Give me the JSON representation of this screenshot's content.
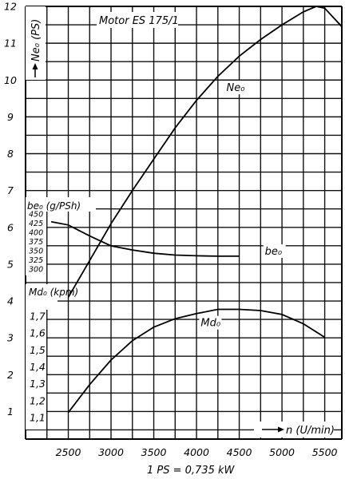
{
  "chart_data": {
    "type": "line",
    "title": "Motor ES 175/1",
    "x": {
      "label": "n (U/min)",
      "ticks": [
        2500,
        3000,
        3500,
        4000,
        4500,
        5000,
        5500
      ],
      "range": [
        2000,
        5700
      ]
    },
    "left_axis": {
      "label": "Ne₀ (PS)",
      "ticks": [
        1,
        2,
        3,
        4,
        5,
        6,
        7,
        8,
        9,
        10,
        11,
        12
      ],
      "range": [
        0.25,
        12
      ]
    },
    "bsfc_scale": {
      "label": "be₀ (g/PSh)",
      "ticks": [
        "450",
        "425",
        "400",
        "375",
        "350",
        "325",
        "300"
      ],
      "values": [
        450,
        425,
        400,
        375,
        350,
        325,
        300
      ]
    },
    "torque_scale": {
      "label": "Md₀ (kpm)",
      "ticks": [
        "1,7",
        "1,6",
        "1,5",
        "1,4",
        "1,3",
        "1,2",
        "1,1"
      ],
      "values": [
        1.7,
        1.6,
        1.5,
        1.4,
        1.3,
        1.2,
        1.1
      ]
    },
    "footnote": "1 PS = 0,735 kW",
    "series": [
      {
        "name": "Ne₀",
        "axis": "left",
        "x": [
          2500,
          2750,
          3000,
          3250,
          3500,
          3750,
          4000,
          4250,
          4500,
          4750,
          5000,
          5250,
          5400,
          5500,
          5700
        ],
        "y": [
          4.1,
          5.1,
          6.1,
          7.0,
          7.85,
          8.7,
          9.45,
          10.1,
          10.65,
          11.1,
          11.5,
          11.85,
          12.0,
          11.95,
          11.45
        ]
      },
      {
        "name": "be₀",
        "axis": "bsfc",
        "x": [
          2300,
          2500,
          2750,
          3000,
          3250,
          3500,
          3750,
          4000,
          4250,
          4500
        ],
        "y": [
          429,
          420,
          390,
          363,
          352,
          343,
          338,
          336,
          335,
          335
        ]
      },
      {
        "name": "Md₀",
        "axis": "torque",
        "x": [
          2500,
          2750,
          3000,
          3250,
          3500,
          3750,
          4000,
          4250,
          4500,
          4750,
          5000,
          5250,
          5500
        ],
        "y": [
          1.13,
          1.295,
          1.44,
          1.555,
          1.635,
          1.685,
          1.715,
          1.74,
          1.74,
          1.733,
          1.71,
          1.655,
          1.575
        ]
      }
    ]
  }
}
